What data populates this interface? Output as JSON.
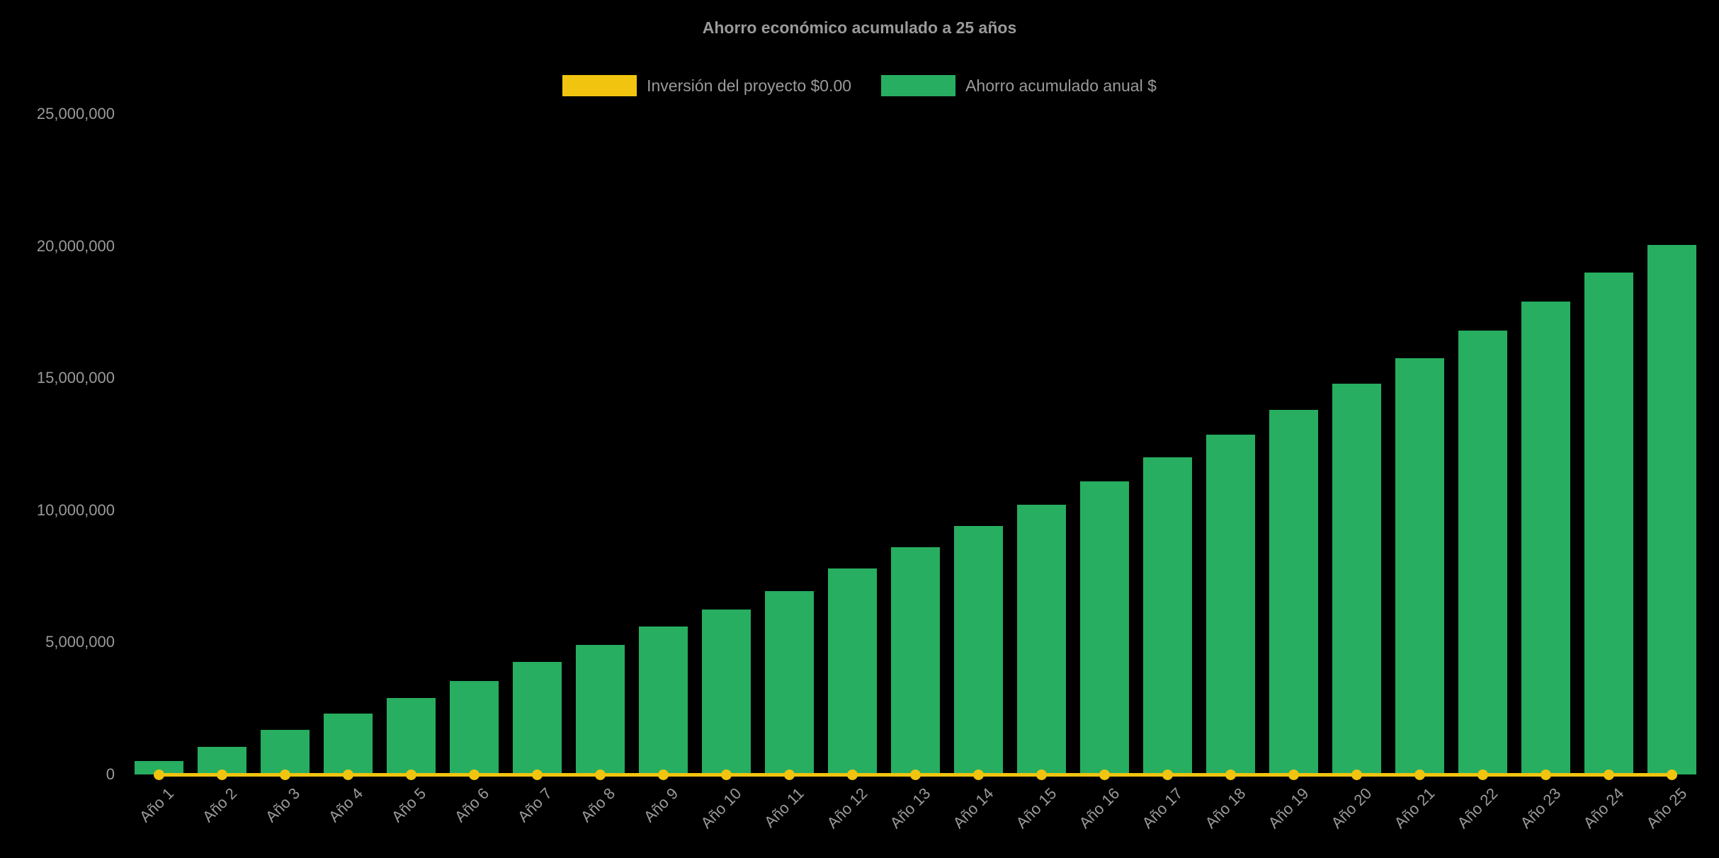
{
  "page": {
    "background": "#000000",
    "text_color": "#9a9a9a"
  },
  "chart_data": {
    "type": "bar",
    "title": "Ahorro económico acumulado a 25 años",
    "categories": [
      "Año 1",
      "Año 2",
      "Año 3",
      "Año 4",
      "Año 5",
      "Año 6",
      "Año 7",
      "Año 8",
      "Año 9",
      "Año 10",
      "Año 11",
      "Año 12",
      "Año 13",
      "Año 14",
      "Año 15",
      "Año 16",
      "Año 17",
      "Año 18",
      "Año 19",
      "Año 20",
      "Año 21",
      "Año 22",
      "Año 23",
      "Año 24",
      "Año 25"
    ],
    "series": [
      {
        "name": "Inversión del proyecto $0.00",
        "type": "line",
        "color": "#f1c40f",
        "values": [
          0,
          0,
          0,
          0,
          0,
          0,
          0,
          0,
          0,
          0,
          0,
          0,
          0,
          0,
          0,
          0,
          0,
          0,
          0,
          0,
          0,
          0,
          0,
          0,
          0
        ]
      },
      {
        "name": "Ahorro acumulado anual $",
        "type": "bar",
        "color": "#27ae60",
        "values": [
          500000,
          1050000,
          1700000,
          2300000,
          2900000,
          3550000,
          4250000,
          4900000,
          5600000,
          6250000,
          6950000,
          7800000,
          8600000,
          9400000,
          10200000,
          11100000,
          12000000,
          12850000,
          13800000,
          14800000,
          15750000,
          16800000,
          17900000,
          19000000,
          20050000
        ]
      }
    ],
    "xlabel": "",
    "ylabel": "",
    "ylim": [
      0,
      25000000
    ],
    "yticks": [
      0,
      5000000,
      10000000,
      15000000,
      20000000,
      25000000
    ],
    "grid": false,
    "legend_position": "top",
    "x_label_rotation": 45
  }
}
